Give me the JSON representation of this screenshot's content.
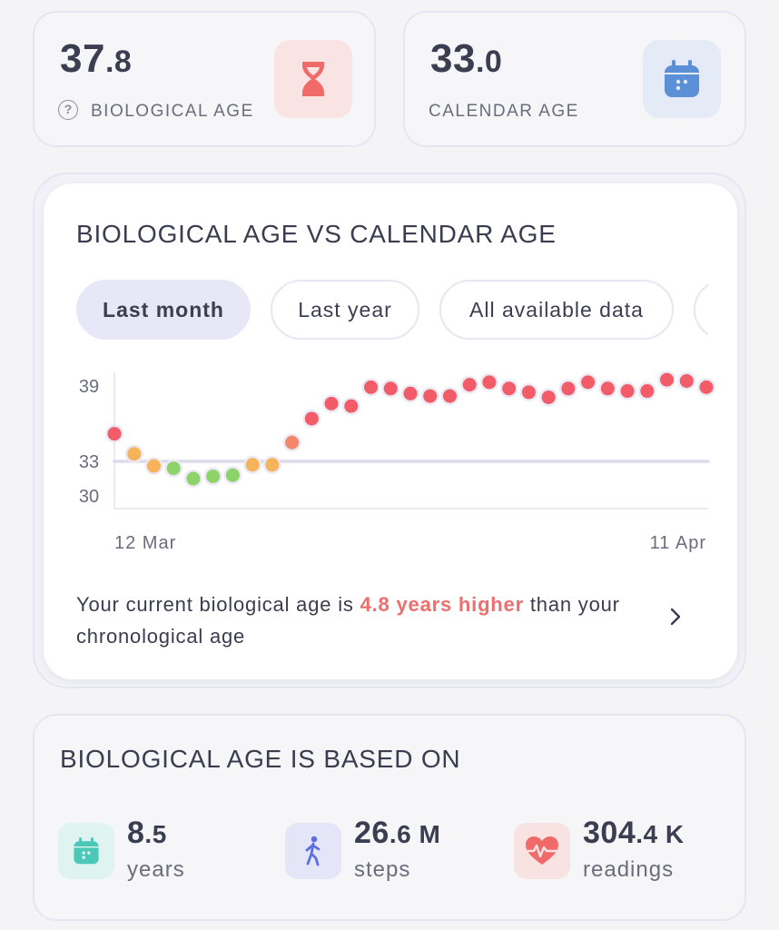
{
  "bio_age": {
    "value_int": "37",
    "value_dec": ".8",
    "label": "BIOLOGICAL AGE",
    "icon": "hourglass-icon",
    "color": "#f16a6a"
  },
  "calendar_age": {
    "value_int": "33",
    "value_dec": ".0",
    "label": "CALENDAR AGE",
    "icon": "calendar-icon",
    "color": "#5b8fd6"
  },
  "chart_card": {
    "title": "BIOLOGICAL AGE VS CALENDAR AGE",
    "tabs": [
      {
        "label": "Last month",
        "active": true
      },
      {
        "label": "Last year",
        "active": false
      },
      {
        "label": "All available data",
        "active": false
      }
    ],
    "summary_prefix": "Your current biological age is ",
    "summary_highlight": "4.8 years higher",
    "summary_suffix": " than your chronological age"
  },
  "chart_data": {
    "type": "scatter",
    "x_tick_labels": [
      "12 Mar",
      "11 Apr"
    ],
    "y_ticks": [
      30,
      33,
      39
    ],
    "reference_line": 33,
    "colors": {
      "red": "#f25c68",
      "orange": "#f6b35a",
      "green": "#8cd46a",
      "salmon": "#f2876a"
    },
    "points": [
      {
        "y": 35.2,
        "c": "red"
      },
      {
        "y": 33.6,
        "c": "orange"
      },
      {
        "y": 32.6,
        "c": "orange"
      },
      {
        "y": 32.4,
        "c": "green"
      },
      {
        "y": 31.5,
        "c": "green"
      },
      {
        "y": 31.7,
        "c": "green"
      },
      {
        "y": 31.8,
        "c": "green"
      },
      {
        "y": 32.7,
        "c": "orange"
      },
      {
        "y": 32.7,
        "c": "orange"
      },
      {
        "y": 34.5,
        "c": "salmon"
      },
      {
        "y": 36.4,
        "c": "red"
      },
      {
        "y": 37.6,
        "c": "red"
      },
      {
        "y": 37.4,
        "c": "red"
      },
      {
        "y": 38.9,
        "c": "red"
      },
      {
        "y": 38.8,
        "c": "red"
      },
      {
        "y": 38.4,
        "c": "red"
      },
      {
        "y": 38.2,
        "c": "red"
      },
      {
        "y": 38.2,
        "c": "red"
      },
      {
        "y": 39.1,
        "c": "red"
      },
      {
        "y": 39.3,
        "c": "red"
      },
      {
        "y": 38.8,
        "c": "red"
      },
      {
        "y": 38.5,
        "c": "red"
      },
      {
        "y": 38.1,
        "c": "red"
      },
      {
        "y": 38.8,
        "c": "red"
      },
      {
        "y": 39.3,
        "c": "red"
      },
      {
        "y": 38.8,
        "c": "red"
      },
      {
        "y": 38.6,
        "c": "red"
      },
      {
        "y": 38.6,
        "c": "red"
      },
      {
        "y": 39.5,
        "c": "red"
      },
      {
        "y": 39.4,
        "c": "red"
      },
      {
        "y": 38.9,
        "c": "red"
      }
    ]
  },
  "based_on": {
    "title": "BIOLOGICAL AGE IS BASED ON",
    "metrics": [
      {
        "value_int": "8",
        "value_dec": ".5",
        "suffix": "",
        "unit": "years",
        "icon": "calendar-icon",
        "tile_color": "#dff3f1",
        "icon_color": "#4cc8b8"
      },
      {
        "value_int": "26",
        "value_dec": ".6",
        "suffix": " M",
        "unit": "steps",
        "icon": "walking-person-icon",
        "tile_color": "#e4e6f8",
        "icon_color": "#5b6fe0"
      },
      {
        "value_int": "304",
        "value_dec": ".4",
        "suffix": " K",
        "unit": "readings",
        "icon": "heart-rate-icon",
        "tile_color": "#f9e2e2",
        "icon_color": "#f16a6a"
      }
    ]
  }
}
